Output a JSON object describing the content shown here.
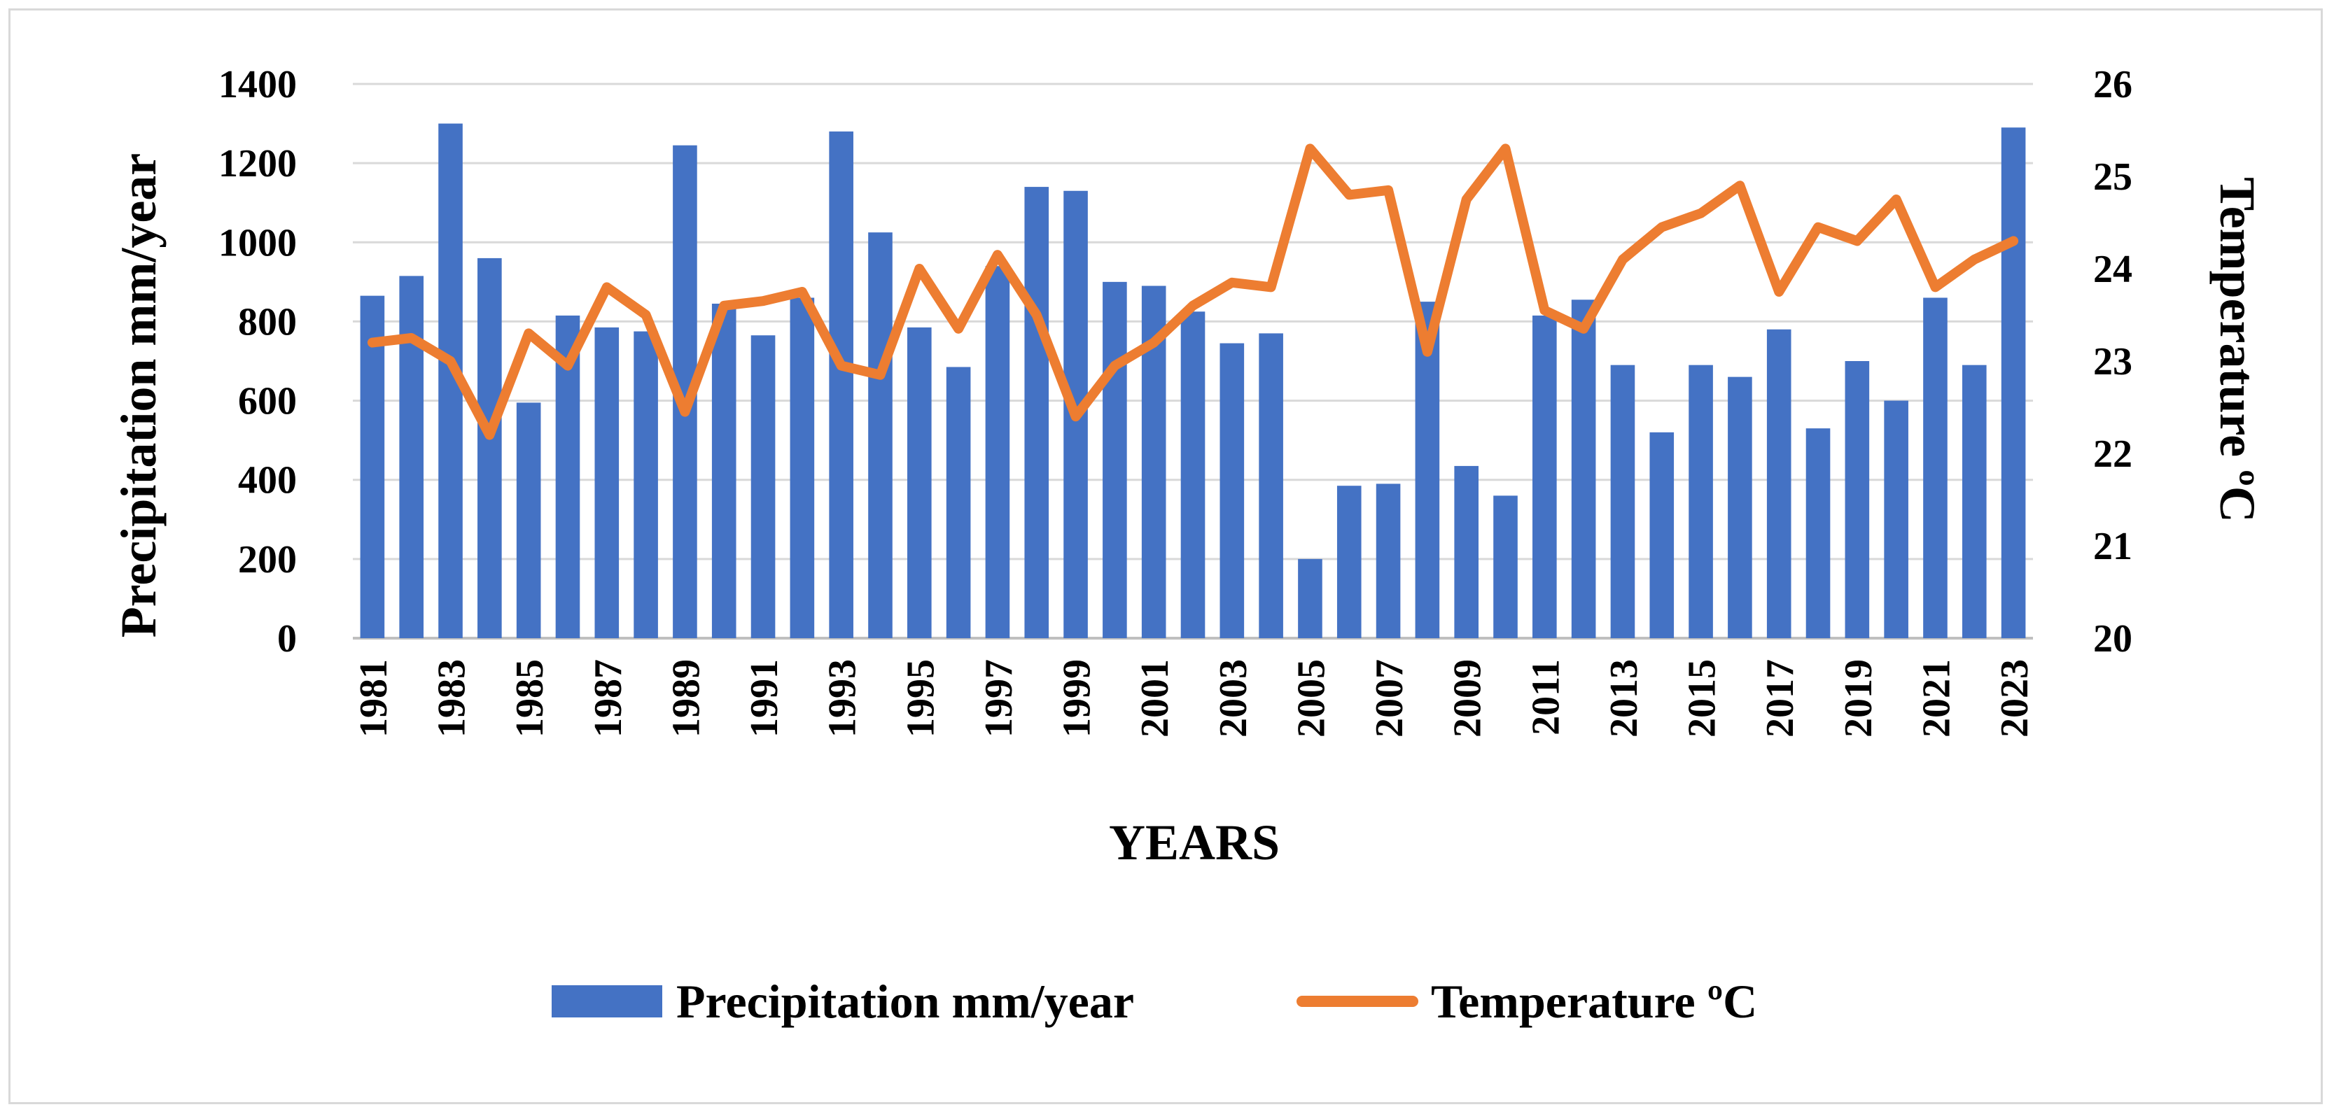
{
  "chart_data": {
    "type": "bar+line",
    "title": "",
    "xlabel": "YEARS",
    "ylabel_left": "Precipitation mm/year",
    "ylabel_right": "Temperature ºC",
    "ylim_left": [
      0,
      1400
    ],
    "ylim_right": [
      20,
      26
    ],
    "yticks_left": [
      "0",
      "200",
      "400",
      "600",
      "800",
      "1000",
      "1200",
      "1400"
    ],
    "yticks_right": [
      "20",
      "21",
      "22",
      "23",
      "24",
      "25",
      "26"
    ],
    "grid": true,
    "legend_position": "bottom",
    "categories": [
      1981,
      1982,
      1983,
      1984,
      1985,
      1986,
      1987,
      1988,
      1989,
      1990,
      1991,
      1992,
      1993,
      1994,
      1995,
      1996,
      1997,
      1998,
      1999,
      2000,
      2001,
      2002,
      2003,
      2004,
      2005,
      2006,
      2007,
      2008,
      2009,
      2010,
      2011,
      2012,
      2013,
      2014,
      2015,
      2016,
      2017,
      2018,
      2019,
      2020,
      2021,
      2022,
      2023
    ],
    "xtick_labels": [
      "1981",
      "1983",
      "1985",
      "1987",
      "1989",
      "1991",
      "1993",
      "1995",
      "1997",
      "1999",
      "2001",
      "2003",
      "2005",
      "2007",
      "2009",
      "2011",
      "2013",
      "2015",
      "2017",
      "2019",
      "2021",
      "2023"
    ],
    "series": [
      {
        "name": "Precipitation mm/year",
        "type": "bar",
        "axis": "left",
        "color": "#4472C4",
        "values": [
          865,
          915,
          1300,
          960,
          595,
          815,
          785,
          775,
          1245,
          845,
          765,
          860,
          1280,
          1025,
          785,
          685,
          940,
          1140,
          1130,
          900,
          890,
          825,
          745,
          770,
          200,
          385,
          390,
          850,
          435,
          360,
          815,
          855,
          690,
          520,
          690,
          660,
          780,
          530,
          700,
          600,
          860,
          690,
          1290
        ]
      },
      {
        "name": "Temperature ºC",
        "type": "line",
        "axis": "right",
        "color": "#ED7D31",
        "values": [
          23.2,
          23.25,
          23.0,
          22.2,
          23.3,
          22.95,
          23.8,
          23.5,
          22.45,
          23.6,
          23.65,
          23.75,
          22.95,
          22.85,
          24.0,
          23.35,
          24.15,
          23.5,
          22.4,
          22.95,
          23.2,
          23.6,
          23.85,
          23.8,
          25.3,
          24.8,
          24.85,
          23.1,
          24.75,
          25.3,
          23.55,
          23.35,
          24.1,
          24.45,
          24.6,
          24.9,
          23.75,
          24.45,
          24.3,
          24.75,
          23.8,
          24.1,
          24.3
        ]
      }
    ]
  }
}
